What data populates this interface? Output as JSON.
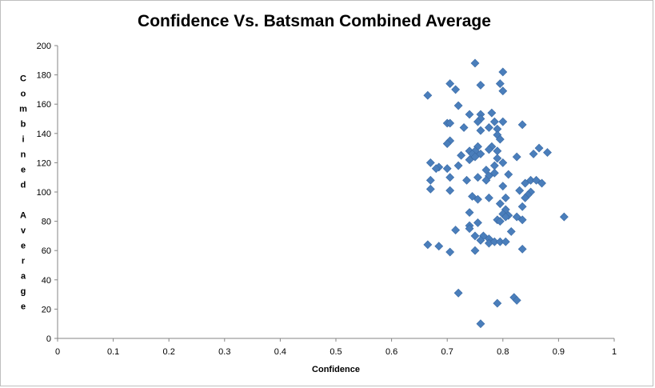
{
  "chart_data": {
    "type": "scatter",
    "title": "Confidence Vs. Batsman Combined Average",
    "xlabel": "Confidence",
    "ylabel": "Combined Average",
    "xlim": [
      0,
      1
    ],
    "ylim": [
      0,
      200
    ],
    "x_ticks": [
      "0",
      "0.1",
      "0.2",
      "0.3",
      "0.4",
      "0.5",
      "0.6",
      "0.7",
      "0.8",
      "0.9",
      "1"
    ],
    "y_ticks": [
      "0",
      "20",
      "40",
      "60",
      "80",
      "100",
      "120",
      "140",
      "160",
      "180",
      "200"
    ],
    "grid": false,
    "legend": "none",
    "marker": "diamond",
    "marker_color": "#4a7ebb",
    "points": [
      [
        0.75,
        188
      ],
      [
        0.8,
        182
      ],
      [
        0.705,
        174
      ],
      [
        0.76,
        173
      ],
      [
        0.795,
        174
      ],
      [
        0.715,
        170
      ],
      [
        0.8,
        169
      ],
      [
        0.665,
        166
      ],
      [
        0.72,
        159
      ],
      [
        0.78,
        154
      ],
      [
        0.76,
        153
      ],
      [
        0.74,
        153
      ],
      [
        0.76,
        150
      ],
      [
        0.785,
        148
      ],
      [
        0.755,
        148
      ],
      [
        0.8,
        148
      ],
      [
        0.7,
        147
      ],
      [
        0.705,
        147
      ],
      [
        0.835,
        146
      ],
      [
        0.775,
        144
      ],
      [
        0.73,
        144
      ],
      [
        0.79,
        143
      ],
      [
        0.76,
        142
      ],
      [
        0.79,
        139
      ],
      [
        0.795,
        136
      ],
      [
        0.705,
        135
      ],
      [
        0.7,
        133
      ],
      [
        0.755,
        131
      ],
      [
        0.78,
        131
      ],
      [
        0.775,
        129
      ],
      [
        0.865,
        130
      ],
      [
        0.74,
        128
      ],
      [
        0.75,
        128
      ],
      [
        0.79,
        128
      ],
      [
        0.88,
        127
      ],
      [
        0.745,
        126
      ],
      [
        0.76,
        126
      ],
      [
        0.725,
        125
      ],
      [
        0.855,
        126
      ],
      [
        0.75,
        124
      ],
      [
        0.79,
        123
      ],
      [
        0.74,
        122
      ],
      [
        0.825,
        124
      ],
      [
        0.67,
        120
      ],
      [
        0.8,
        120
      ],
      [
        0.785,
        118
      ],
      [
        0.72,
        118
      ],
      [
        0.685,
        117
      ],
      [
        0.68,
        116
      ],
      [
        0.7,
        116
      ],
      [
        0.77,
        115
      ],
      [
        0.785,
        113
      ],
      [
        0.81,
        112
      ],
      [
        0.775,
        111
      ],
      [
        0.705,
        110
      ],
      [
        0.755,
        110
      ],
      [
        0.67,
        108
      ],
      [
        0.735,
        108
      ],
      [
        0.77,
        108
      ],
      [
        0.85,
        108
      ],
      [
        0.84,
        106
      ],
      [
        0.86,
        108
      ],
      [
        0.87,
        106
      ],
      [
        0.8,
        104
      ],
      [
        0.83,
        101
      ],
      [
        0.67,
        102
      ],
      [
        0.705,
        101
      ],
      [
        0.85,
        100
      ],
      [
        0.845,
        98
      ],
      [
        0.745,
        97
      ],
      [
        0.755,
        95
      ],
      [
        0.805,
        96
      ],
      [
        0.775,
        96
      ],
      [
        0.84,
        96
      ],
      [
        0.795,
        92
      ],
      [
        0.835,
        90
      ],
      [
        0.805,
        88
      ],
      [
        0.74,
        86
      ],
      [
        0.8,
        85
      ],
      [
        0.81,
        84
      ],
      [
        0.805,
        83
      ],
      [
        0.825,
        83
      ],
      [
        0.91,
        83
      ],
      [
        0.835,
        81
      ],
      [
        0.79,
        81
      ],
      [
        0.795,
        80
      ],
      [
        0.755,
        79
      ],
      [
        0.74,
        77
      ],
      [
        0.74,
        75
      ],
      [
        0.715,
        74
      ],
      [
        0.815,
        73
      ],
      [
        0.765,
        70
      ],
      [
        0.75,
        70
      ],
      [
        0.775,
        68
      ],
      [
        0.76,
        67
      ],
      [
        0.775,
        65
      ],
      [
        0.785,
        66
      ],
      [
        0.795,
        66
      ],
      [
        0.805,
        66
      ],
      [
        0.665,
        64
      ],
      [
        0.685,
        63
      ],
      [
        0.835,
        61
      ],
      [
        0.75,
        60
      ],
      [
        0.705,
        59
      ],
      [
        0.72,
        31
      ],
      [
        0.82,
        28
      ],
      [
        0.825,
        26
      ],
      [
        0.79,
        24
      ],
      [
        0.76,
        10
      ]
    ]
  }
}
